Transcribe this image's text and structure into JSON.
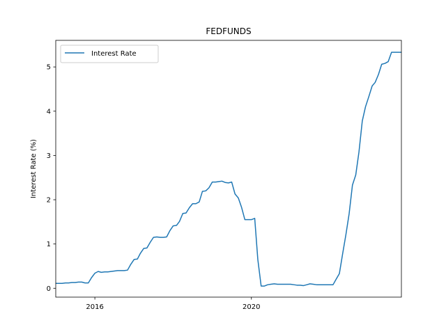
{
  "chart_data": {
    "type": "line",
    "title": "FEDFUNDS",
    "xlabel": "",
    "ylabel": "Interest Rate (%)",
    "xlim": [
      "2015-01-01",
      "2023-11-01"
    ],
    "ylim": [
      -0.2,
      5.6
    ],
    "x_ticks": [
      {
        "date": "2016-01-01",
        "label": "2016"
      },
      {
        "date": "2020-01-01",
        "label": "2020"
      }
    ],
    "y_ticks": [
      {
        "value": 0,
        "label": "0"
      },
      {
        "value": 1,
        "label": "1"
      },
      {
        "value": 2,
        "label": "2"
      },
      {
        "value": 3,
        "label": "3"
      },
      {
        "value": 4,
        "label": "4"
      },
      {
        "value": 5,
        "label": "5"
      }
    ],
    "grid": false,
    "legend_position": "upper-left",
    "series": [
      {
        "name": "Interest Rate",
        "color": "#1f77b4",
        "x": [
          "2015-01",
          "2015-02",
          "2015-03",
          "2015-04",
          "2015-05",
          "2015-06",
          "2015-07",
          "2015-08",
          "2015-09",
          "2015-10",
          "2015-11",
          "2015-12",
          "2016-01",
          "2016-02",
          "2016-03",
          "2016-04",
          "2016-05",
          "2016-06",
          "2016-07",
          "2016-08",
          "2016-09",
          "2016-10",
          "2016-11",
          "2016-12",
          "2017-01",
          "2017-02",
          "2017-03",
          "2017-04",
          "2017-05",
          "2017-06",
          "2017-07",
          "2017-08",
          "2017-09",
          "2017-10",
          "2017-11",
          "2017-12",
          "2018-01",
          "2018-02",
          "2018-03",
          "2018-04",
          "2018-05",
          "2018-06",
          "2018-07",
          "2018-08",
          "2018-09",
          "2018-10",
          "2018-11",
          "2018-12",
          "2019-01",
          "2019-02",
          "2019-03",
          "2019-04",
          "2019-05",
          "2019-06",
          "2019-07",
          "2019-08",
          "2019-09",
          "2019-10",
          "2019-11",
          "2019-12",
          "2020-01",
          "2020-02",
          "2020-03",
          "2020-04",
          "2020-05",
          "2020-06",
          "2020-07",
          "2020-08",
          "2020-09",
          "2020-10",
          "2020-11",
          "2020-12",
          "2021-01",
          "2021-02",
          "2021-03",
          "2021-04",
          "2021-05",
          "2021-06",
          "2021-07",
          "2021-08",
          "2021-09",
          "2021-10",
          "2021-11",
          "2021-12",
          "2022-01",
          "2022-02",
          "2022-03",
          "2022-04",
          "2022-05",
          "2022-06",
          "2022-07",
          "2022-08",
          "2022-09",
          "2022-10",
          "2022-11",
          "2022-12",
          "2023-01",
          "2023-02",
          "2023-03",
          "2023-04",
          "2023-05",
          "2023-06",
          "2023-07",
          "2023-08",
          "2023-09",
          "2023-10",
          "2023-11"
        ],
        "values": [
          0.11,
          0.11,
          0.11,
          0.12,
          0.12,
          0.13,
          0.13,
          0.14,
          0.14,
          0.12,
          0.12,
          0.24,
          0.34,
          0.38,
          0.36,
          0.37,
          0.37,
          0.38,
          0.39,
          0.4,
          0.4,
          0.4,
          0.41,
          0.54,
          0.65,
          0.66,
          0.79,
          0.9,
          0.91,
          1.04,
          1.15,
          1.16,
          1.15,
          1.15,
          1.16,
          1.3,
          1.41,
          1.42,
          1.51,
          1.69,
          1.7,
          1.82,
          1.91,
          1.91,
          1.95,
          2.19,
          2.2,
          2.27,
          2.4,
          2.4,
          2.41,
          2.42,
          2.39,
          2.38,
          2.4,
          2.13,
          2.04,
          1.83,
          1.55,
          1.55,
          1.55,
          1.58,
          0.65,
          0.05,
          0.05,
          0.08,
          0.09,
          0.1,
          0.09,
          0.09,
          0.09,
          0.09,
          0.09,
          0.08,
          0.07,
          0.07,
          0.06,
          0.08,
          0.1,
          0.09,
          0.08,
          0.08,
          0.08,
          0.08,
          0.08,
          0.08,
          0.2,
          0.33,
          0.77,
          1.21,
          1.68,
          2.33,
          2.56,
          3.08,
          3.78,
          4.1,
          4.33,
          4.57,
          4.65,
          4.83,
          5.06,
          5.08,
          5.12,
          5.33,
          5.33,
          5.33,
          5.33
        ]
      }
    ]
  }
}
